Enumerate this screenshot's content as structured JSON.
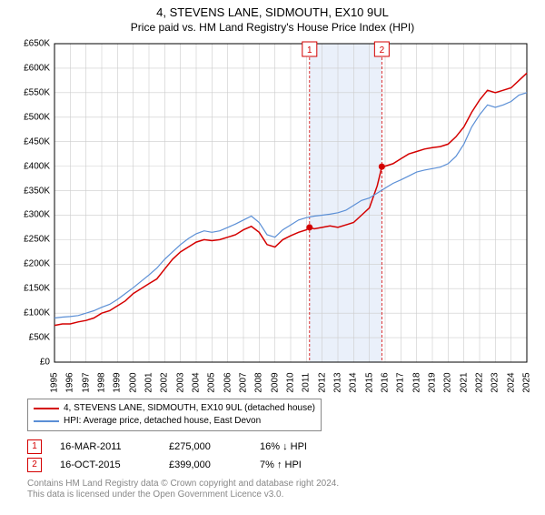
{
  "title": "4, STEVENS LANE, SIDMOUTH, EX10 9UL",
  "subtitle": "Price paid vs. HM Land Registry's House Price Index (HPI)",
  "chart": {
    "type": "line",
    "background_color": "#ffffff",
    "grid_color": "#cccccc",
    "band_color": "#eaf0fa",
    "xlim": [
      1995,
      2025
    ],
    "ylim": [
      0,
      650000
    ],
    "ytick_step": 50000,
    "ytick_labels": [
      "£0",
      "£50K",
      "£100K",
      "£150K",
      "£200K",
      "£250K",
      "£300K",
      "£350K",
      "£400K",
      "£450K",
      "£500K",
      "£550K",
      "£600K",
      "£650K"
    ],
    "xtick_step": 1,
    "xtick_labels": [
      "1995",
      "1996",
      "1997",
      "1998",
      "1999",
      "2000",
      "2001",
      "2002",
      "2003",
      "2004",
      "2005",
      "2006",
      "2007",
      "2008",
      "2009",
      "2010",
      "2011",
      "2012",
      "2013",
      "2014",
      "2015",
      "2016",
      "2017",
      "2018",
      "2019",
      "2020",
      "2021",
      "2022",
      "2023",
      "2024",
      "2025"
    ],
    "series": [
      {
        "name": "property",
        "label": "4, STEVENS LANE, SIDMOUTH, EX10 9UL (detached house)",
        "color": "#d40000",
        "line_width": 1.5,
        "data": [
          [
            1995,
            75000
          ],
          [
            1995.5,
            78000
          ],
          [
            1996,
            78000
          ],
          [
            1996.5,
            82000
          ],
          [
            1997,
            85000
          ],
          [
            1997.5,
            90000
          ],
          [
            1998,
            100000
          ],
          [
            1998.5,
            105000
          ],
          [
            1999,
            115000
          ],
          [
            1999.5,
            125000
          ],
          [
            2000,
            140000
          ],
          [
            2000.5,
            150000
          ],
          [
            2001,
            160000
          ],
          [
            2001.5,
            170000
          ],
          [
            2002,
            190000
          ],
          [
            2002.5,
            210000
          ],
          [
            2003,
            225000
          ],
          [
            2003.5,
            235000
          ],
          [
            2004,
            245000
          ],
          [
            2004.5,
            250000
          ],
          [
            2005,
            248000
          ],
          [
            2005.5,
            250000
          ],
          [
            2006,
            255000
          ],
          [
            2006.5,
            260000
          ],
          [
            2007,
            270000
          ],
          [
            2007.5,
            277000
          ],
          [
            2008,
            265000
          ],
          [
            2008.5,
            240000
          ],
          [
            2009,
            235000
          ],
          [
            2009.5,
            250000
          ],
          [
            2010,
            258000
          ],
          [
            2010.5,
            265000
          ],
          [
            2011,
            270000
          ],
          [
            2011.2,
            275000
          ],
          [
            2011.5,
            272000
          ],
          [
            2012,
            275000
          ],
          [
            2012.5,
            278000
          ],
          [
            2013,
            275000
          ],
          [
            2013.5,
            280000
          ],
          [
            2014,
            285000
          ],
          [
            2014.5,
            300000
          ],
          [
            2015,
            315000
          ],
          [
            2015.5,
            360000
          ],
          [
            2015.79,
            399000
          ],
          [
            2016,
            400000
          ],
          [
            2016.5,
            405000
          ],
          [
            2017,
            415000
          ],
          [
            2017.5,
            425000
          ],
          [
            2018,
            430000
          ],
          [
            2018.5,
            435000
          ],
          [
            2019,
            438000
          ],
          [
            2019.5,
            440000
          ],
          [
            2020,
            445000
          ],
          [
            2020.5,
            460000
          ],
          [
            2021,
            480000
          ],
          [
            2021.5,
            510000
          ],
          [
            2022,
            535000
          ],
          [
            2022.5,
            555000
          ],
          [
            2023,
            550000
          ],
          [
            2023.5,
            555000
          ],
          [
            2024,
            560000
          ],
          [
            2024.5,
            575000
          ],
          [
            2025,
            590000
          ]
        ]
      },
      {
        "name": "hpi",
        "label": "HPI: Average price, detached house, East Devon",
        "color": "#5b8fd6",
        "line_width": 1.2,
        "data": [
          [
            1995,
            90000
          ],
          [
            1995.5,
            92000
          ],
          [
            1996,
            93000
          ],
          [
            1996.5,
            95000
          ],
          [
            1997,
            100000
          ],
          [
            1997.5,
            105000
          ],
          [
            1998,
            112000
          ],
          [
            1998.5,
            118000
          ],
          [
            1999,
            128000
          ],
          [
            1999.5,
            140000
          ],
          [
            2000,
            152000
          ],
          [
            2000.5,
            165000
          ],
          [
            2001,
            178000
          ],
          [
            2001.5,
            192000
          ],
          [
            2002,
            210000
          ],
          [
            2002.5,
            225000
          ],
          [
            2003,
            240000
          ],
          [
            2003.5,
            252000
          ],
          [
            2004,
            262000
          ],
          [
            2004.5,
            268000
          ],
          [
            2005,
            265000
          ],
          [
            2005.5,
            268000
          ],
          [
            2006,
            275000
          ],
          [
            2006.5,
            282000
          ],
          [
            2007,
            290000
          ],
          [
            2007.5,
            298000
          ],
          [
            2008,
            285000
          ],
          [
            2008.5,
            260000
          ],
          [
            2009,
            255000
          ],
          [
            2009.5,
            270000
          ],
          [
            2010,
            280000
          ],
          [
            2010.5,
            290000
          ],
          [
            2011,
            295000
          ],
          [
            2011.5,
            298000
          ],
          [
            2012,
            300000
          ],
          [
            2012.5,
            302000
          ],
          [
            2013,
            305000
          ],
          [
            2013.5,
            310000
          ],
          [
            2014,
            320000
          ],
          [
            2014.5,
            330000
          ],
          [
            2015,
            335000
          ],
          [
            2015.5,
            345000
          ],
          [
            2016,
            355000
          ],
          [
            2016.5,
            365000
          ],
          [
            2017,
            372000
          ],
          [
            2017.5,
            380000
          ],
          [
            2018,
            388000
          ],
          [
            2018.5,
            392000
          ],
          [
            2019,
            395000
          ],
          [
            2019.5,
            398000
          ],
          [
            2020,
            405000
          ],
          [
            2020.5,
            420000
          ],
          [
            2021,
            445000
          ],
          [
            2021.5,
            480000
          ],
          [
            2022,
            505000
          ],
          [
            2022.5,
            525000
          ],
          [
            2023,
            520000
          ],
          [
            2023.5,
            525000
          ],
          [
            2024,
            532000
          ],
          [
            2024.5,
            545000
          ],
          [
            2025,
            550000
          ]
        ]
      }
    ],
    "markers": [
      {
        "id": "1",
        "year": 2011.2,
        "price": 275000,
        "color": "#d40000"
      },
      {
        "id": "2",
        "year": 2015.79,
        "price": 399000,
        "color": "#d40000"
      }
    ],
    "highlight_band": {
      "from": 2011.2,
      "to": 2015.79
    },
    "sale_lines_color": "#d40000"
  },
  "sales": [
    {
      "id": "1",
      "date": "16-MAR-2011",
      "price": "£275,000",
      "diff": "16% ↓ HPI"
    },
    {
      "id": "2",
      "date": "16-OCT-2015",
      "price": "£399,000",
      "diff": "7% ↑ HPI"
    }
  ],
  "footnote_line1": "Contains HM Land Registry data © Crown copyright and database right 2024.",
  "footnote_line2": "This data is licensed under the Open Government Licence v3.0."
}
